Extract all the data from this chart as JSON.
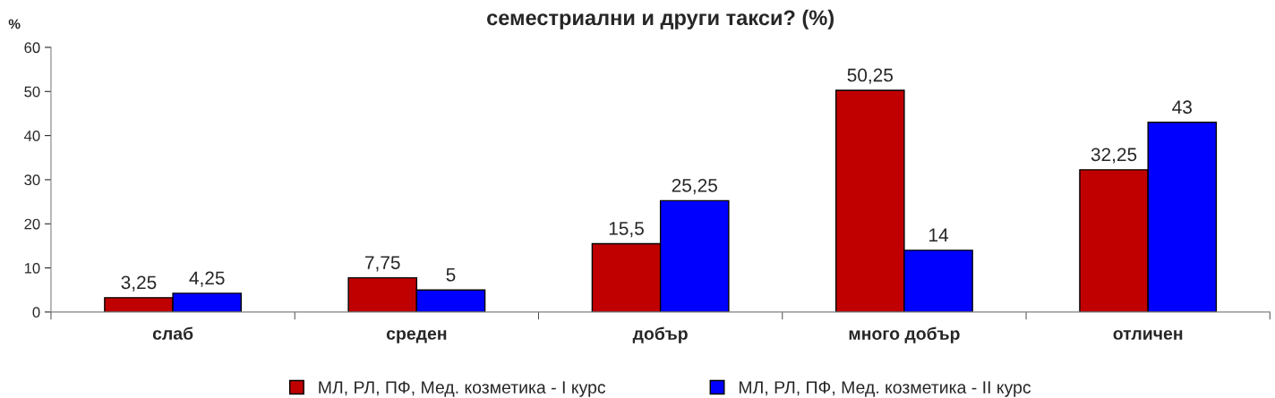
{
  "chart_data": {
    "type": "bar",
    "title": "семестриални и други такси? (%)",
    "ylabel": "%",
    "categories": [
      "слаб",
      "среден",
      "добър",
      "много добър",
      "отличен"
    ],
    "series": [
      {
        "name": "МЛ, РЛ, ПФ, Мед. козметика - I курс",
        "color": "#c00000",
        "values": [
          3.25,
          7.75,
          15.5,
          50.25,
          32.25
        ],
        "value_labels": [
          "3,25",
          "7,75",
          "15,5",
          "50,25",
          "32,25"
        ]
      },
      {
        "name": "МЛ, РЛ, ПФ, Мед. козметика - II курс",
        "color": "#0000ff",
        "values": [
          4.25,
          5,
          25.25,
          14,
          43
        ],
        "value_labels": [
          "4,25",
          "5",
          "25,25",
          "14",
          "43"
        ]
      }
    ],
    "ylim": [
      0,
      60
    ],
    "yticks": [
      0,
      10,
      20,
      30,
      40,
      50,
      60
    ],
    "grid": false,
    "legend": "bottom"
  }
}
